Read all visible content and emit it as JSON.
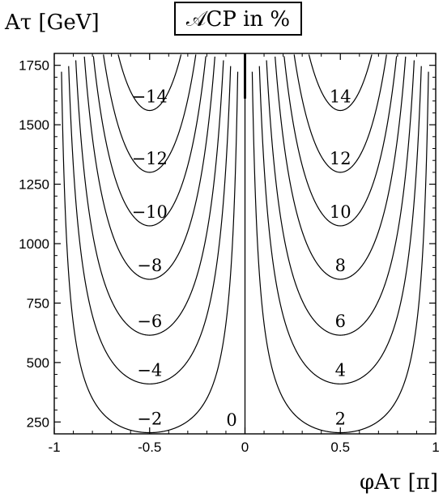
{
  "chart_data": {
    "type": "contour",
    "title": "𝒜CP in %",
    "ylabel": "Aτ [GeV]",
    "xlabel": "φAτ [π]",
    "xlim": [
      -1,
      1
    ],
    "ylim": [
      200,
      1800
    ],
    "xticks": [
      -1,
      -0.5,
      0,
      0.5,
      1
    ],
    "xtick_labels": [
      "-1",
      "-0.5",
      "0",
      "0.5",
      "1"
    ],
    "yticks": [
      250,
      500,
      750,
      1000,
      1250,
      1500,
      1750
    ],
    "ytick_labels": [
      "250",
      "500",
      "750",
      "1000",
      "1250",
      "1500",
      "1750"
    ],
    "grid": false,
    "contours": [
      {
        "level": -2,
        "label": "−2",
        "min_y": 205,
        "x_center": -0.5
      },
      {
        "level": -4,
        "label": "−4",
        "min_y": 410,
        "x_center": -0.5
      },
      {
        "level": -6,
        "label": "−6",
        "min_y": 615,
        "x_center": -0.5
      },
      {
        "level": -8,
        "label": "−8",
        "min_y": 850,
        "x_center": -0.5
      },
      {
        "level": -10,
        "label": "−10",
        "min_y": 1075,
        "x_center": -0.5
      },
      {
        "level": -12,
        "label": "−12",
        "min_y": 1300,
        "x_center": -0.5
      },
      {
        "level": -14,
        "label": "−14",
        "min_y": 1560,
        "x_center": -0.5
      },
      {
        "level": 0,
        "label": "0",
        "min_y": 200,
        "x_center": 0
      },
      {
        "level": 2,
        "label": "2",
        "min_y": 205,
        "x_center": 0.5
      },
      {
        "level": 4,
        "label": "4",
        "min_y": 410,
        "x_center": 0.5
      },
      {
        "level": 6,
        "label": "6",
        "min_y": 615,
        "x_center": 0.5
      },
      {
        "level": 8,
        "label": "8",
        "min_y": 850,
        "x_center": 0.5
      },
      {
        "level": 10,
        "label": "10",
        "min_y": 1075,
        "x_center": 0.5
      },
      {
        "level": 12,
        "label": "12",
        "min_y": 1300,
        "x_center": 0.5
      },
      {
        "level": 14,
        "label": "14",
        "min_y": 1560,
        "x_center": 0.5
      }
    ]
  }
}
